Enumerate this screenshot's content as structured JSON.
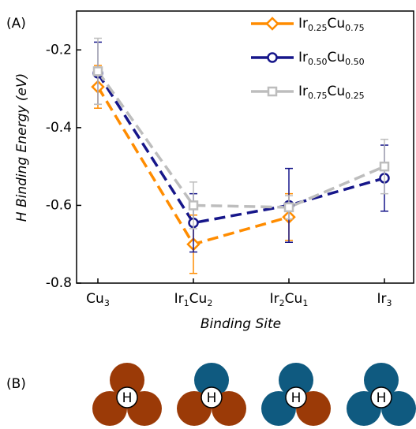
{
  "chart_data": {
    "type": "line",
    "panel_label": "(A)",
    "x_label": "Binding Site",
    "y_label": "H Binding Energy (eV)",
    "categories": [
      "Cu3",
      "Ir1Cu2",
      "Ir2Cu1",
      "Ir3"
    ],
    "ylim": [
      -0.8,
      -0.1
    ],
    "yticks": [
      -0.8,
      -0.6,
      -0.4,
      -0.2
    ],
    "legend": "upper right",
    "series": [
      {
        "name": "Ir0.25Cu0.75",
        "color": "#ff8c00",
        "marker": "diamond",
        "values": [
          -0.295,
          -0.7,
          -0.63,
          null
        ],
        "errors": [
          0.055,
          0.075,
          0.06,
          null
        ]
      },
      {
        "name": "Ir0.50Cu0.50",
        "color": "#16168a",
        "marker": "circle",
        "values": [
          -0.26,
          -0.645,
          -0.6,
          -0.53
        ],
        "errors": [
          0.08,
          0.075,
          0.095,
          0.085
        ]
      },
      {
        "name": "Ir0.75Cu0.25",
        "color": "#bdbdbd",
        "marker": "square",
        "values": [
          -0.255,
          -0.6,
          -0.605,
          -0.5
        ],
        "errors": [
          0.085,
          0.06,
          0.03,
          0.07
        ]
      }
    ]
  },
  "panel_b": {
    "panel_label": "(B)",
    "atom_label": "H"
  }
}
